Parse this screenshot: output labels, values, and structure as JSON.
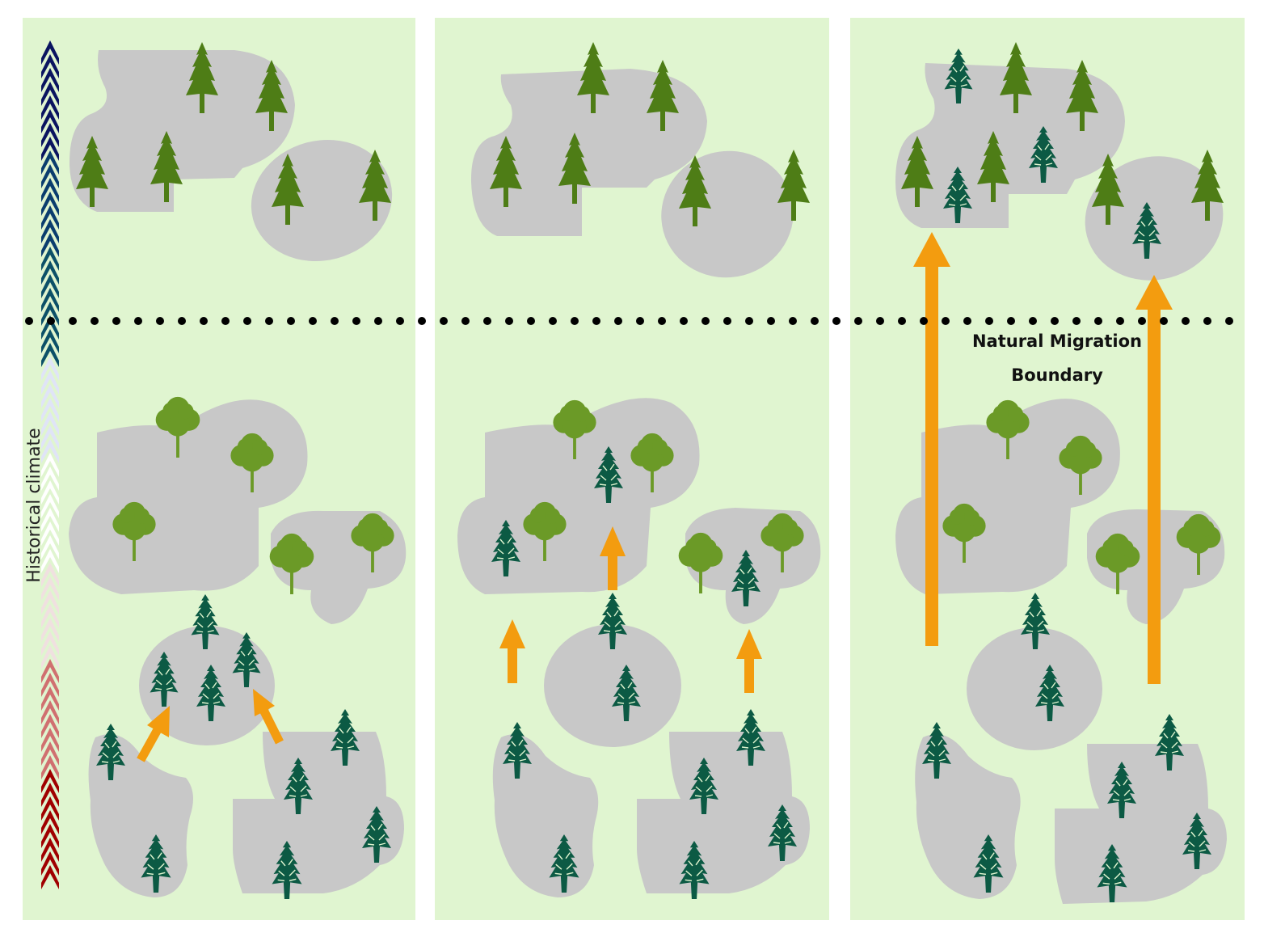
{
  "axis": {
    "label": "Historical climate"
  },
  "boundary": {
    "line1": "Natural Migration",
    "line2": "Boundary"
  },
  "colors": {
    "background": "#ffffff",
    "panel": "#e0f5d0",
    "patch": "#c8c8c8",
    "conifer": "#4e7d16",
    "broadleaf": "#6b9a27",
    "pine": "#0c5a44",
    "arrow": "#f39c0f",
    "boundary_line": "#000000",
    "gradient": [
      "#0a1460",
      "#0a3d6e",
      "#0c5068",
      "#e0e4f7",
      "#ffffff",
      "#f0e0e0",
      "#d07070",
      "#a00000"
    ]
  },
  "panels": [
    {
      "name": "panel-1",
      "tree_icons": [
        "conifer-tree",
        "broadleaf-tree",
        "pine-tree"
      ],
      "arrow_count": 2
    },
    {
      "name": "panel-2",
      "tree_icons": [
        "conifer-tree",
        "broadleaf-tree",
        "pine-tree"
      ],
      "arrow_count": 3
    },
    {
      "name": "panel-3",
      "tree_icons": [
        "conifer-tree",
        "broadleaf-tree",
        "pine-tree"
      ],
      "arrow_count": 2
    }
  ]
}
